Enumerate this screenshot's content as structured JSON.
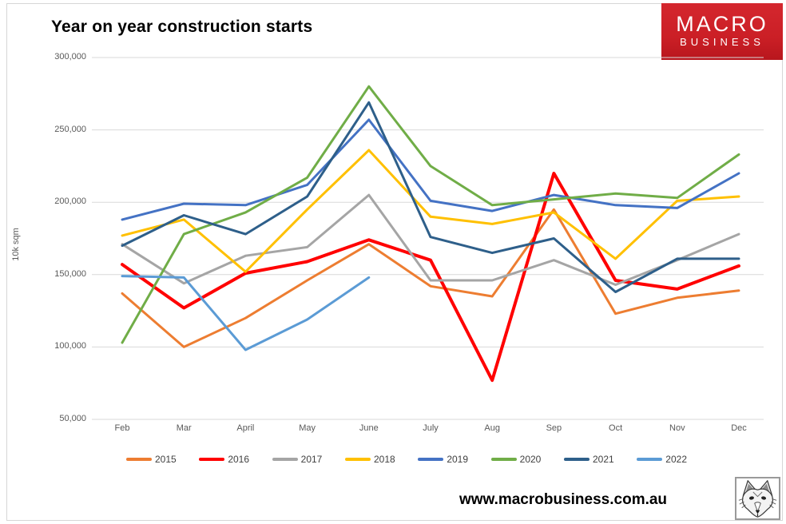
{
  "header": {
    "title": "Year on year construction starts"
  },
  "logo": {
    "line1": "MACRO",
    "line2": "BUSINESS",
    "bg_color": "#cb1f26",
    "text_color": "#ffffff"
  },
  "footer": {
    "url": "www.macrobusiness.com.au",
    "logo_icon": "fox-sketch-icon"
  },
  "chart_data": {
    "type": "line",
    "title": "Year on year construction starts",
    "xlabel": "",
    "ylabel": "10k sqm",
    "ylim": [
      50000,
      300000
    ],
    "grid": "horizontal",
    "legend_position": "bottom",
    "categories": [
      "Feb",
      "Mar",
      "April",
      "May",
      "June",
      "July",
      "Aug",
      "Sep",
      "Oct",
      "Nov",
      "Dec"
    ],
    "yticks": [
      {
        "value": 300000,
        "label": "300,000"
      },
      {
        "value": 250000,
        "label": "250,000"
      },
      {
        "value": 200000,
        "label": "200,000"
      },
      {
        "value": 150000,
        "label": "150,000"
      },
      {
        "value": 100000,
        "label": "100,000"
      },
      {
        "value": 50000,
        "label": "50,000"
      }
    ],
    "series": [
      {
        "name": "2015",
        "color": "#ED7D31",
        "width": 3,
        "values": [
          137000,
          100000,
          120000,
          146000,
          171000,
          142000,
          135000,
          195000,
          123000,
          134000,
          139000
        ]
      },
      {
        "name": "2016",
        "color": "#FF0000",
        "width": 4,
        "values": [
          157000,
          127000,
          151000,
          159000,
          174000,
          160000,
          77000,
          220000,
          146000,
          140000,
          156000
        ]
      },
      {
        "name": "2017",
        "color": "#A5A5A5",
        "width": 3,
        "values": [
          171000,
          144000,
          163000,
          169000,
          205000,
          146000,
          146000,
          160000,
          143000,
          160000,
          178000
        ]
      },
      {
        "name": "2018",
        "color": "#FFC000",
        "width": 3,
        "values": [
          177000,
          188000,
          152000,
          195000,
          236000,
          190000,
          185000,
          193000,
          161000,
          201000,
          204000
        ]
      },
      {
        "name": "2019",
        "color": "#4472C4",
        "width": 3,
        "values": [
          188000,
          199000,
          198000,
          212000,
          257000,
          201000,
          194000,
          205000,
          198000,
          196000,
          220000
        ]
      },
      {
        "name": "2020",
        "color": "#70AD47",
        "width": 3,
        "values": [
          103000,
          178000,
          193000,
          217000,
          280000,
          225000,
          198000,
          202000,
          206000,
          203000,
          233000
        ]
      },
      {
        "name": "2021",
        "color": "#2E5F8A",
        "width": 3,
        "values": [
          170000,
          191000,
          178000,
          204000,
          269000,
          176000,
          165000,
          175000,
          138000,
          161000,
          161000
        ]
      },
      {
        "name": "2022",
        "color": "#5B9BD5",
        "width": 3,
        "values": [
          149000,
          148000,
          98000,
          119000,
          148000,
          null,
          null,
          null,
          null,
          null,
          null
        ]
      }
    ]
  }
}
